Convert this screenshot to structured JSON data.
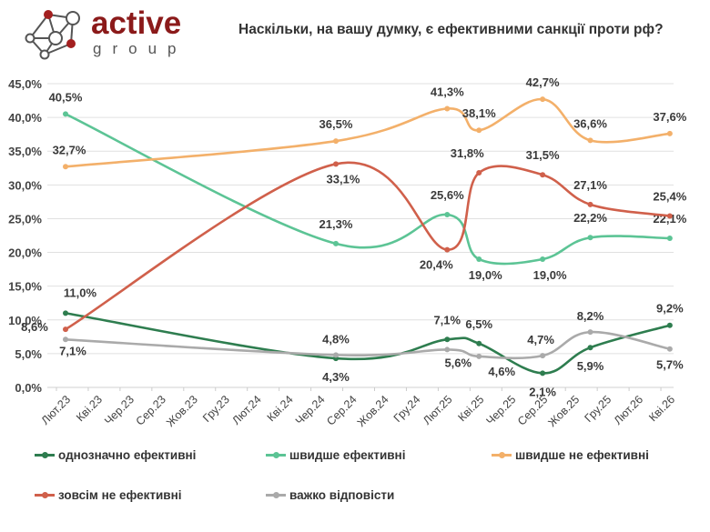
{
  "logo": {
    "word": "active",
    "sub": "group",
    "colors": {
      "red": "#8b1a1a",
      "gray": "#555555"
    }
  },
  "chart_data": {
    "type": "line",
    "title": "Наскільки, на вашу думку, є ефективними санкції проти рф?",
    "x_tick_labels": [
      "Лют.23",
      "Кві.23",
      "Чер.23",
      "Сер.23",
      "Жов.23",
      "Гру.23",
      "Лют.24",
      "Кві.24",
      "Чер.24",
      "Сер.24",
      "Жов.24",
      "Гру.24",
      "Лют.25",
      "Кві.25",
      "Чер.25",
      "Сер.25",
      "Жов.25",
      "Гру.25",
      "Лют.26",
      "Кві.26"
    ],
    "x": [
      "2023-02",
      "2024-07",
      "2025-02",
      "2025-04",
      "2025-08",
      "2025-11",
      "2026-04"
    ],
    "y_tick_labels": [
      "0,0%",
      "5,0%",
      "10,0%",
      "15,0%",
      "20,0%",
      "25,0%",
      "30,0%",
      "35,0%",
      "40,0%",
      "45,0%"
    ],
    "ylim": [
      0,
      45
    ],
    "grid": "horizontal",
    "legend_position": "bottom",
    "smooth": true,
    "series": [
      {
        "name": "однозначно ефективні",
        "color": "#2e7d4f",
        "values": [
          11.0,
          4.3,
          7.1,
          6.5,
          2.1,
          5.9,
          9.2
        ],
        "labels": [
          "11,0%",
          "4,3%",
          "7,1%",
          "6,5%",
          "2,1%",
          "5,9%",
          "9,2%"
        ]
      },
      {
        "name": "швидше ефективні",
        "color": "#5cc495",
        "values": [
          40.5,
          21.3,
          25.6,
          19.0,
          19.0,
          22.2,
          22.1
        ],
        "labels": [
          "40,5%",
          "21,3%",
          "25,6%",
          "19,0%",
          "19,0%",
          "22,2%",
          "22,1%"
        ]
      },
      {
        "name": "швидше не ефективні",
        "color": "#f3b06a",
        "values": [
          32.7,
          36.5,
          41.3,
          38.1,
          42.7,
          36.6,
          37.6
        ],
        "labels": [
          "32,7%",
          "36,5%",
          "41,3%",
          "38,1%",
          "42,7%",
          "36,6%",
          "37,6%"
        ]
      },
      {
        "name": "зовсім не ефективні",
        "color": "#d0604b",
        "values": [
          8.6,
          33.1,
          20.4,
          31.8,
          31.5,
          27.1,
          25.4
        ],
        "labels": [
          "8,6%",
          "33,1%",
          "20,4%",
          "31,8%",
          "31,5%",
          "27,1%",
          "25,4%"
        ]
      },
      {
        "name": "важко відповісти",
        "color": "#aaaaaa",
        "values": [
          7.1,
          4.8,
          5.6,
          4.6,
          4.7,
          8.2,
          5.7
        ],
        "labels": [
          "7,1%",
          "4,8%",
          "5,6%",
          "4,6%",
          "4,7%",
          "8,2%",
          "5,7%"
        ]
      }
    ]
  }
}
